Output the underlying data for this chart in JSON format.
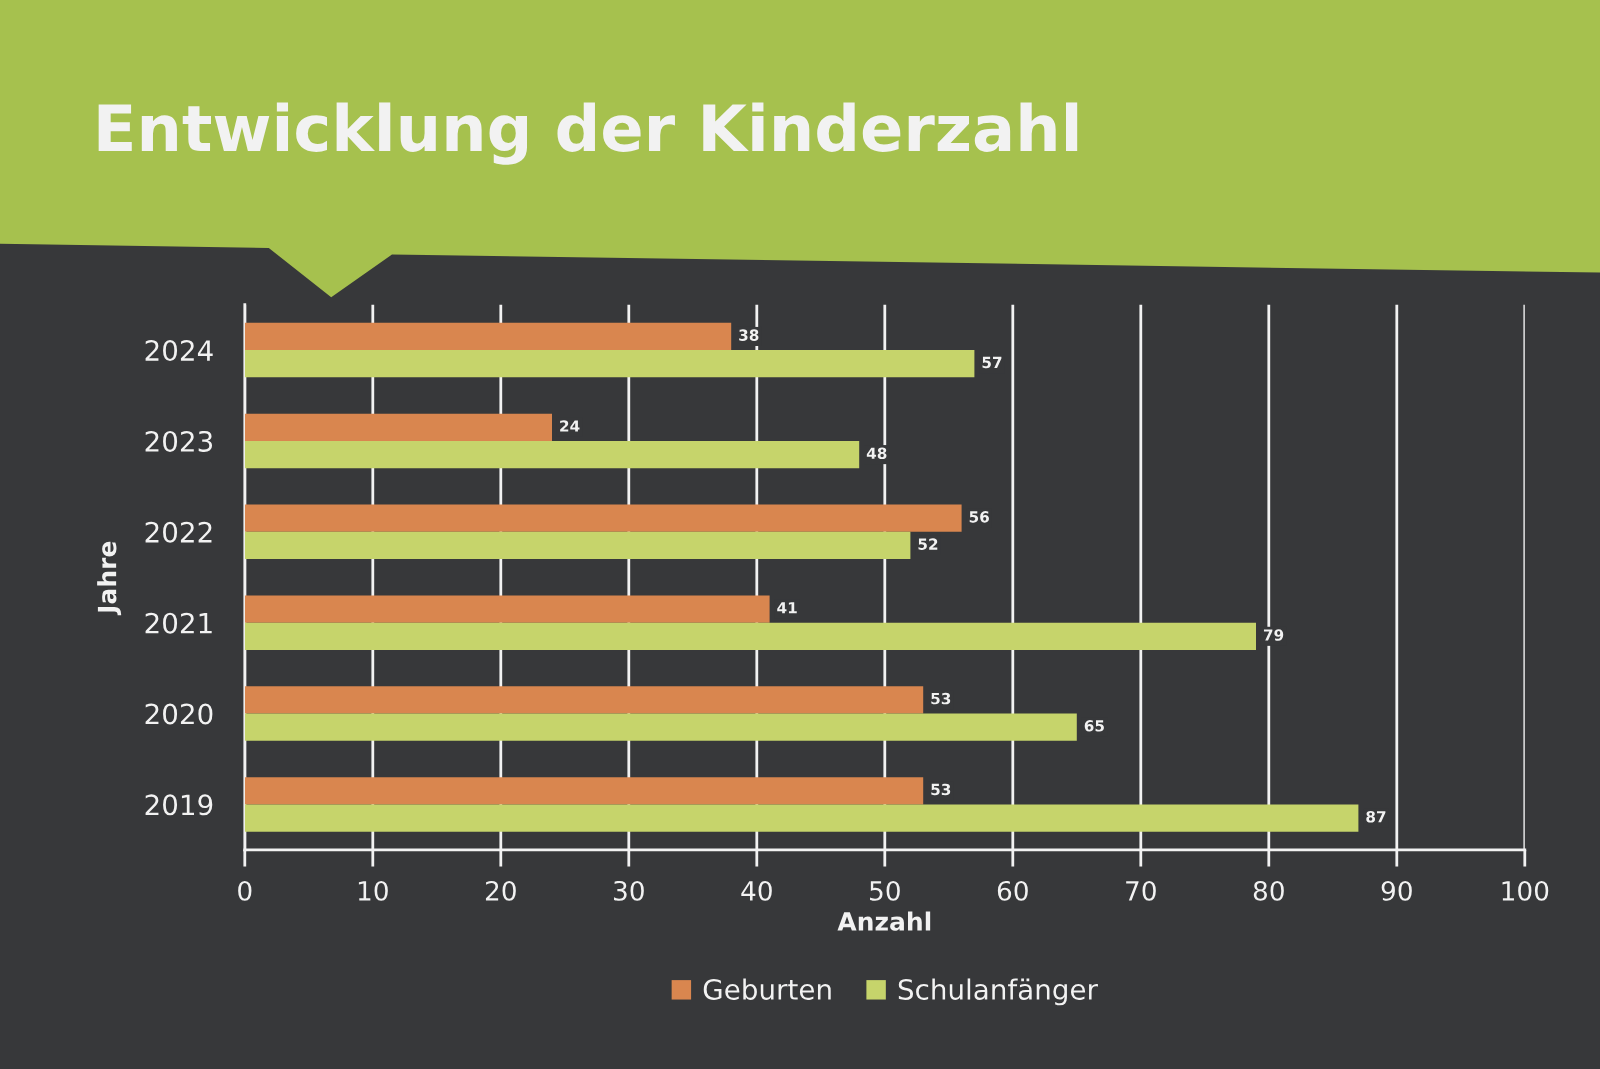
{
  "chart_data": {
    "type": "bar",
    "orientation": "horizontal",
    "title": "Entwicklung der Kinderzahl",
    "xlabel": "Anzahl",
    "ylabel": "Jahre",
    "categories": [
      "2024",
      "2023",
      "2022",
      "2021",
      "2020",
      "2019"
    ],
    "series": [
      {
        "name": "Geburten",
        "color": "#d9864f",
        "values": [
          38,
          24,
          56,
          41,
          53,
          53
        ]
      },
      {
        "name": "Schulanfänger",
        "color": "#c6d46b",
        "values": [
          57,
          48,
          52,
          79,
          65,
          87
        ]
      }
    ],
    "xlim": [
      0,
      100
    ],
    "xticks": [
      0,
      10,
      20,
      30,
      40,
      50,
      60,
      70,
      80,
      90,
      100
    ],
    "grid": "x",
    "legend": "bottom",
    "data_labels": true
  }
}
